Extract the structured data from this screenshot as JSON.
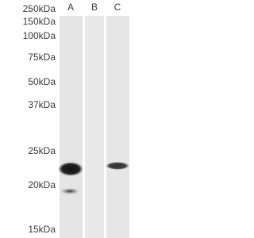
{
  "ladder": [
    "250kDa",
    "150kDa",
    "100kDa",
    "75kDa",
    "50kDa",
    "37kDa",
    "25kDa",
    "20kDa",
    "15kDa"
  ],
  "lanes": [
    "A",
    "B",
    "C"
  ]
}
